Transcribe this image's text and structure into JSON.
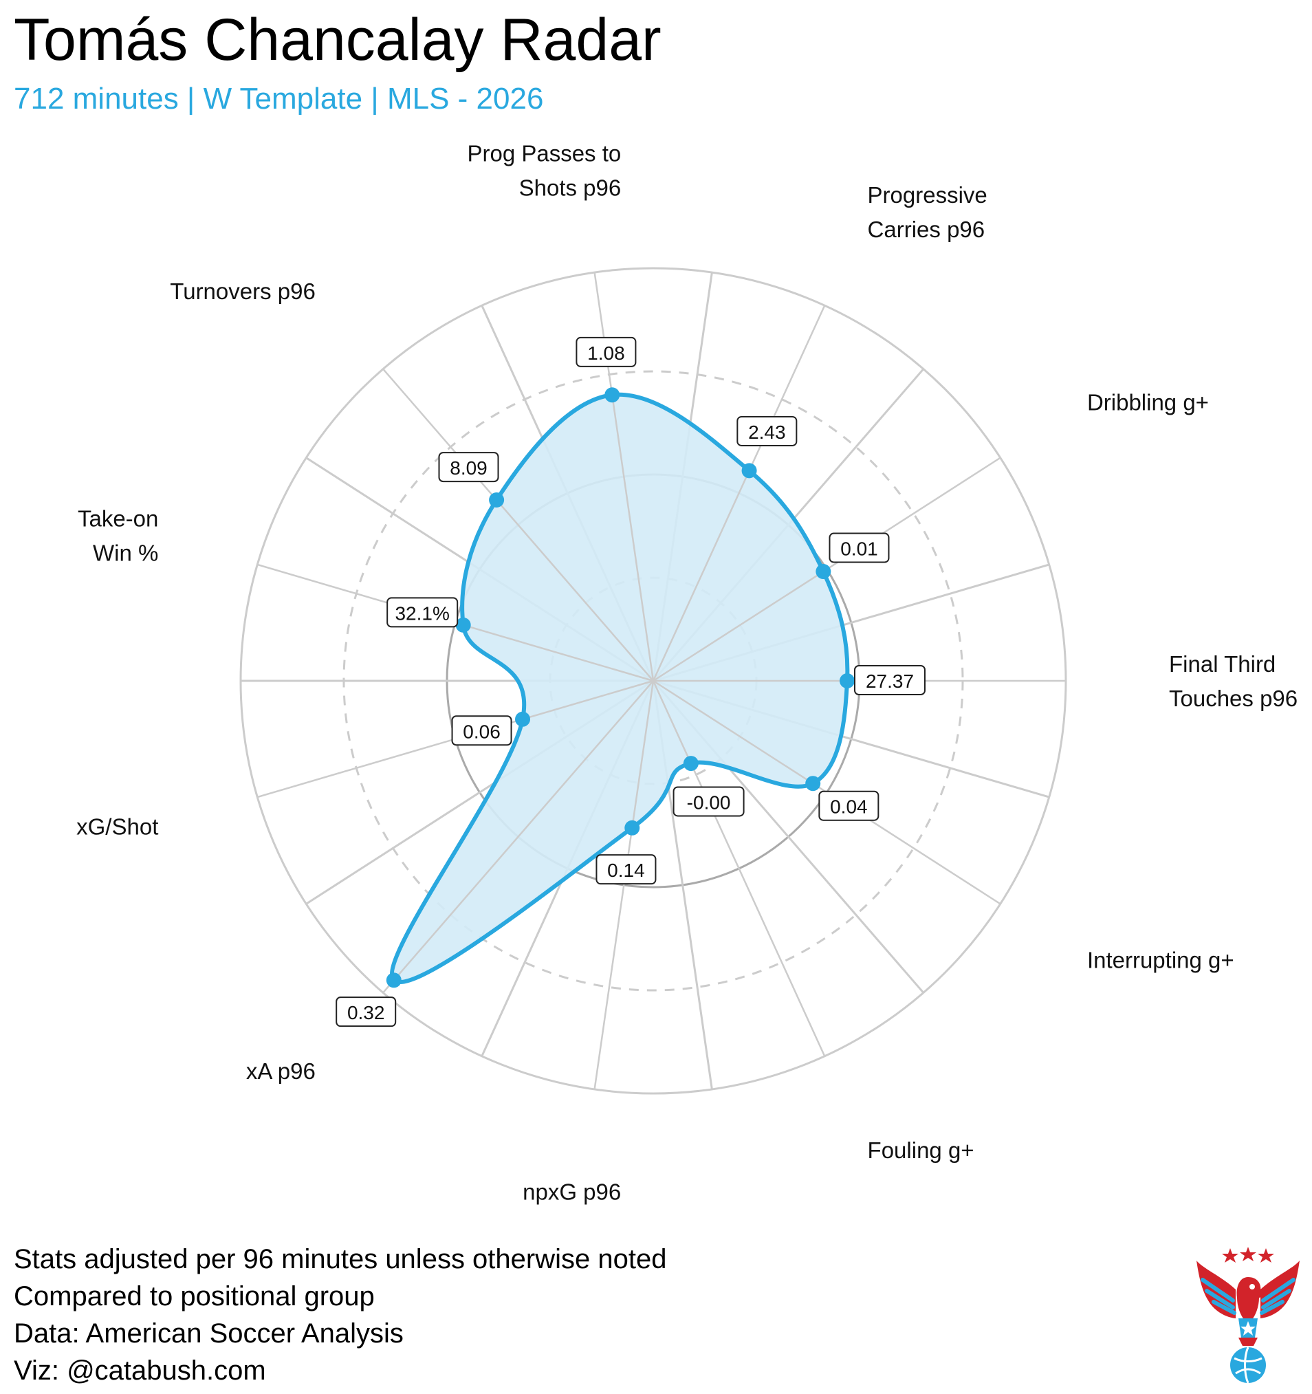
{
  "title": "Tomás Chancalay Radar",
  "subtitle": "712 minutes | W Template | MLS - 2026",
  "footnotes": [
    "Stats adjusted per 96 minutes unless otherwise noted",
    "Compared to positional group",
    "Data: American Soccer Analysis",
    "Viz: @catabush.com"
  ],
  "colors": {
    "accent": "#29a8df",
    "fill": "#d3ebf7",
    "grid": "#cccccc",
    "logo_red": "#d2232a",
    "logo_blue": "#29a8df"
  },
  "logo_icon": "eagle-soccer-ball-logo",
  "chart_data": {
    "type": "radar",
    "title": "Tomás Chancalay Radar",
    "scale": "percentile",
    "rlim": [
      0,
      100
    ],
    "grid": true,
    "axes": [
      {
        "label": [
          "Final Third",
          "Touches p96"
        ],
        "value_label": "27.37",
        "percentile": 47
      },
      {
        "label": [
          "Dribbling g+"
        ],
        "value_label": "0.01",
        "percentile": 49
      },
      {
        "label": [
          "Progressive",
          "Carries p96"
        ],
        "value_label": "2.43",
        "percentile": 56
      },
      {
        "label": [
          "Prog Passes to",
          "Shots p96"
        ],
        "value_label": "1.08",
        "percentile": 70
      },
      {
        "label": [
          "Turnovers p96"
        ],
        "value_label": "8.09",
        "percentile": 58
      },
      {
        "label": [
          "Take-on",
          "Win %"
        ],
        "value_label": "32.1%",
        "percentile": 48
      },
      {
        "label": [
          "xG/Shot"
        ],
        "value_label": "0.06",
        "percentile": 33
      },
      {
        "label": [
          "xA p96"
        ],
        "value_label": "0.32",
        "percentile": 96
      },
      {
        "label": [
          "npxG p96"
        ],
        "value_label": "0.14",
        "percentile": 36
      },
      {
        "label": [
          "Fouling g+"
        ],
        "value_label": "-0.00",
        "percentile": 22
      },
      {
        "label": [
          "Interrupting g+"
        ],
        "value_label": "0.04",
        "percentile": 46
      }
    ]
  }
}
